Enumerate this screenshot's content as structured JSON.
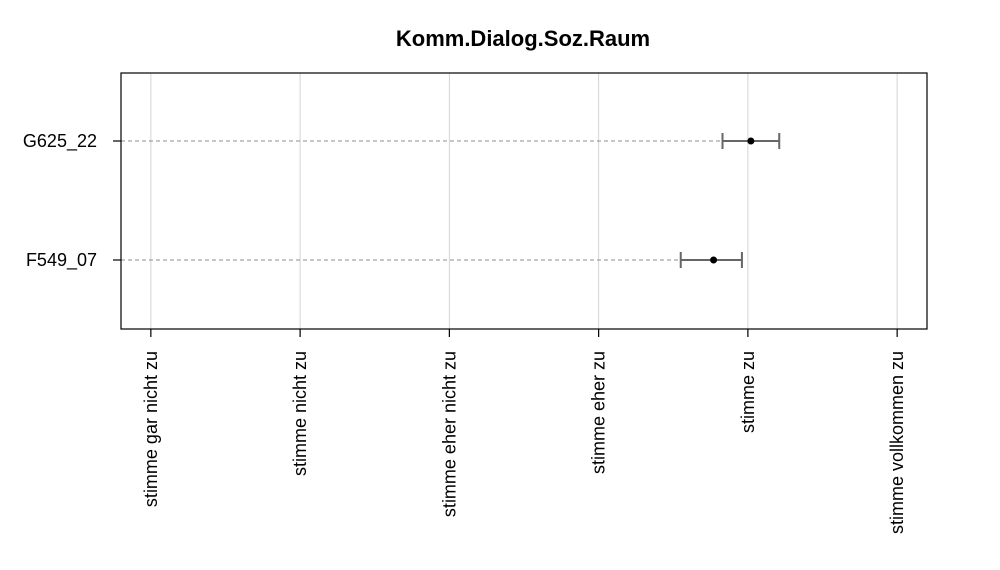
{
  "chart_data": {
    "type": "dotplot-errorbar",
    "title": "Komm.Dialog.Soz.Raum",
    "x_categories": [
      "stimme gar nicht zu",
      "stimme nicht zu",
      "stimme eher nicht zu",
      "stimme eher zu",
      "stimme zu",
      "stimme vollkommen zu"
    ],
    "xlim": [
      0.8,
      6.2
    ],
    "series": [
      {
        "name": "G625_22",
        "mean": 5.02,
        "lower": 4.83,
        "upper": 5.21
      },
      {
        "name": "F549_07",
        "mean": 4.77,
        "lower": 4.55,
        "upper": 4.96
      }
    ],
    "grid": true,
    "colors": {
      "grid": "#d3d3d3",
      "dash": "#8c8c8c",
      "errorbar": "#666666",
      "point": "#000000"
    }
  }
}
